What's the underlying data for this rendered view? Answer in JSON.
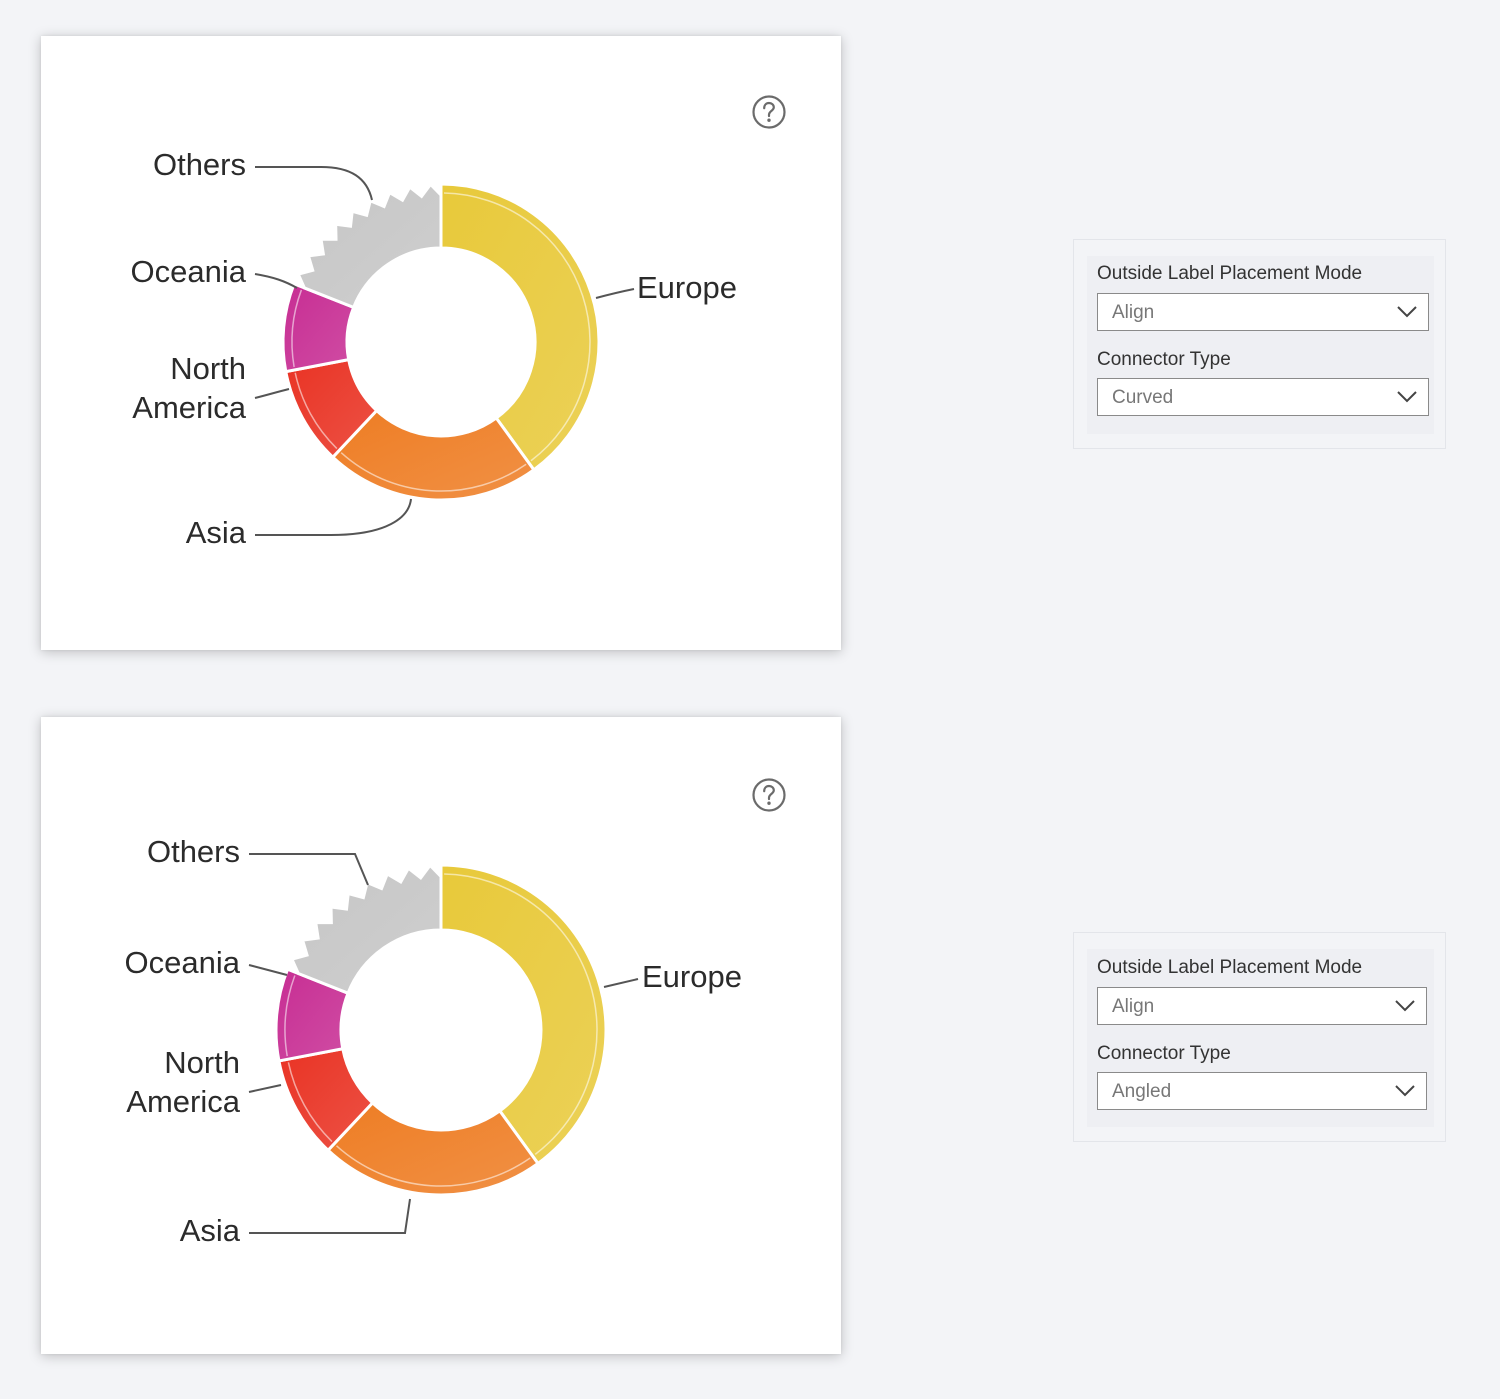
{
  "chart_data": [
    {
      "type": "donut",
      "connector": "curved",
      "series": [
        {
          "label": "Europe",
          "value": 40,
          "color": "#e8c93a"
        },
        {
          "label": "Asia",
          "value": 22,
          "color": "#ee7d24"
        },
        {
          "label": "North America",
          "value": 10,
          "color": "#e93324"
        },
        {
          "label": "Oceania",
          "value": 9,
          "color": "#c72d93"
        },
        {
          "label": "Others",
          "value": 19,
          "color": "#c6c6c6"
        }
      ]
    },
    {
      "type": "donut",
      "connector": "angled",
      "series": [
        {
          "label": "Europe",
          "value": 40,
          "color": "#e8c93a"
        },
        {
          "label": "Asia",
          "value": 22,
          "color": "#ee7d24"
        },
        {
          "label": "North America",
          "value": 10,
          "color": "#e93324"
        },
        {
          "label": "Oceania",
          "value": 9,
          "color": "#c72d93"
        },
        {
          "label": "Others",
          "value": 19,
          "color": "#c6c6c6"
        }
      ]
    }
  ],
  "settings": [
    {
      "placement_label": "Outside Label Placement Mode",
      "placement_value": "Align",
      "connector_label": "Connector Type",
      "connector_value": "Curved"
    },
    {
      "placement_label": "Outside Label Placement Mode",
      "placement_value": "Align",
      "connector_label": "Connector Type",
      "connector_value": "Angled"
    }
  ],
  "icons": {
    "help": "help-circle-icon",
    "dropdown": "chevron-down-icon"
  }
}
